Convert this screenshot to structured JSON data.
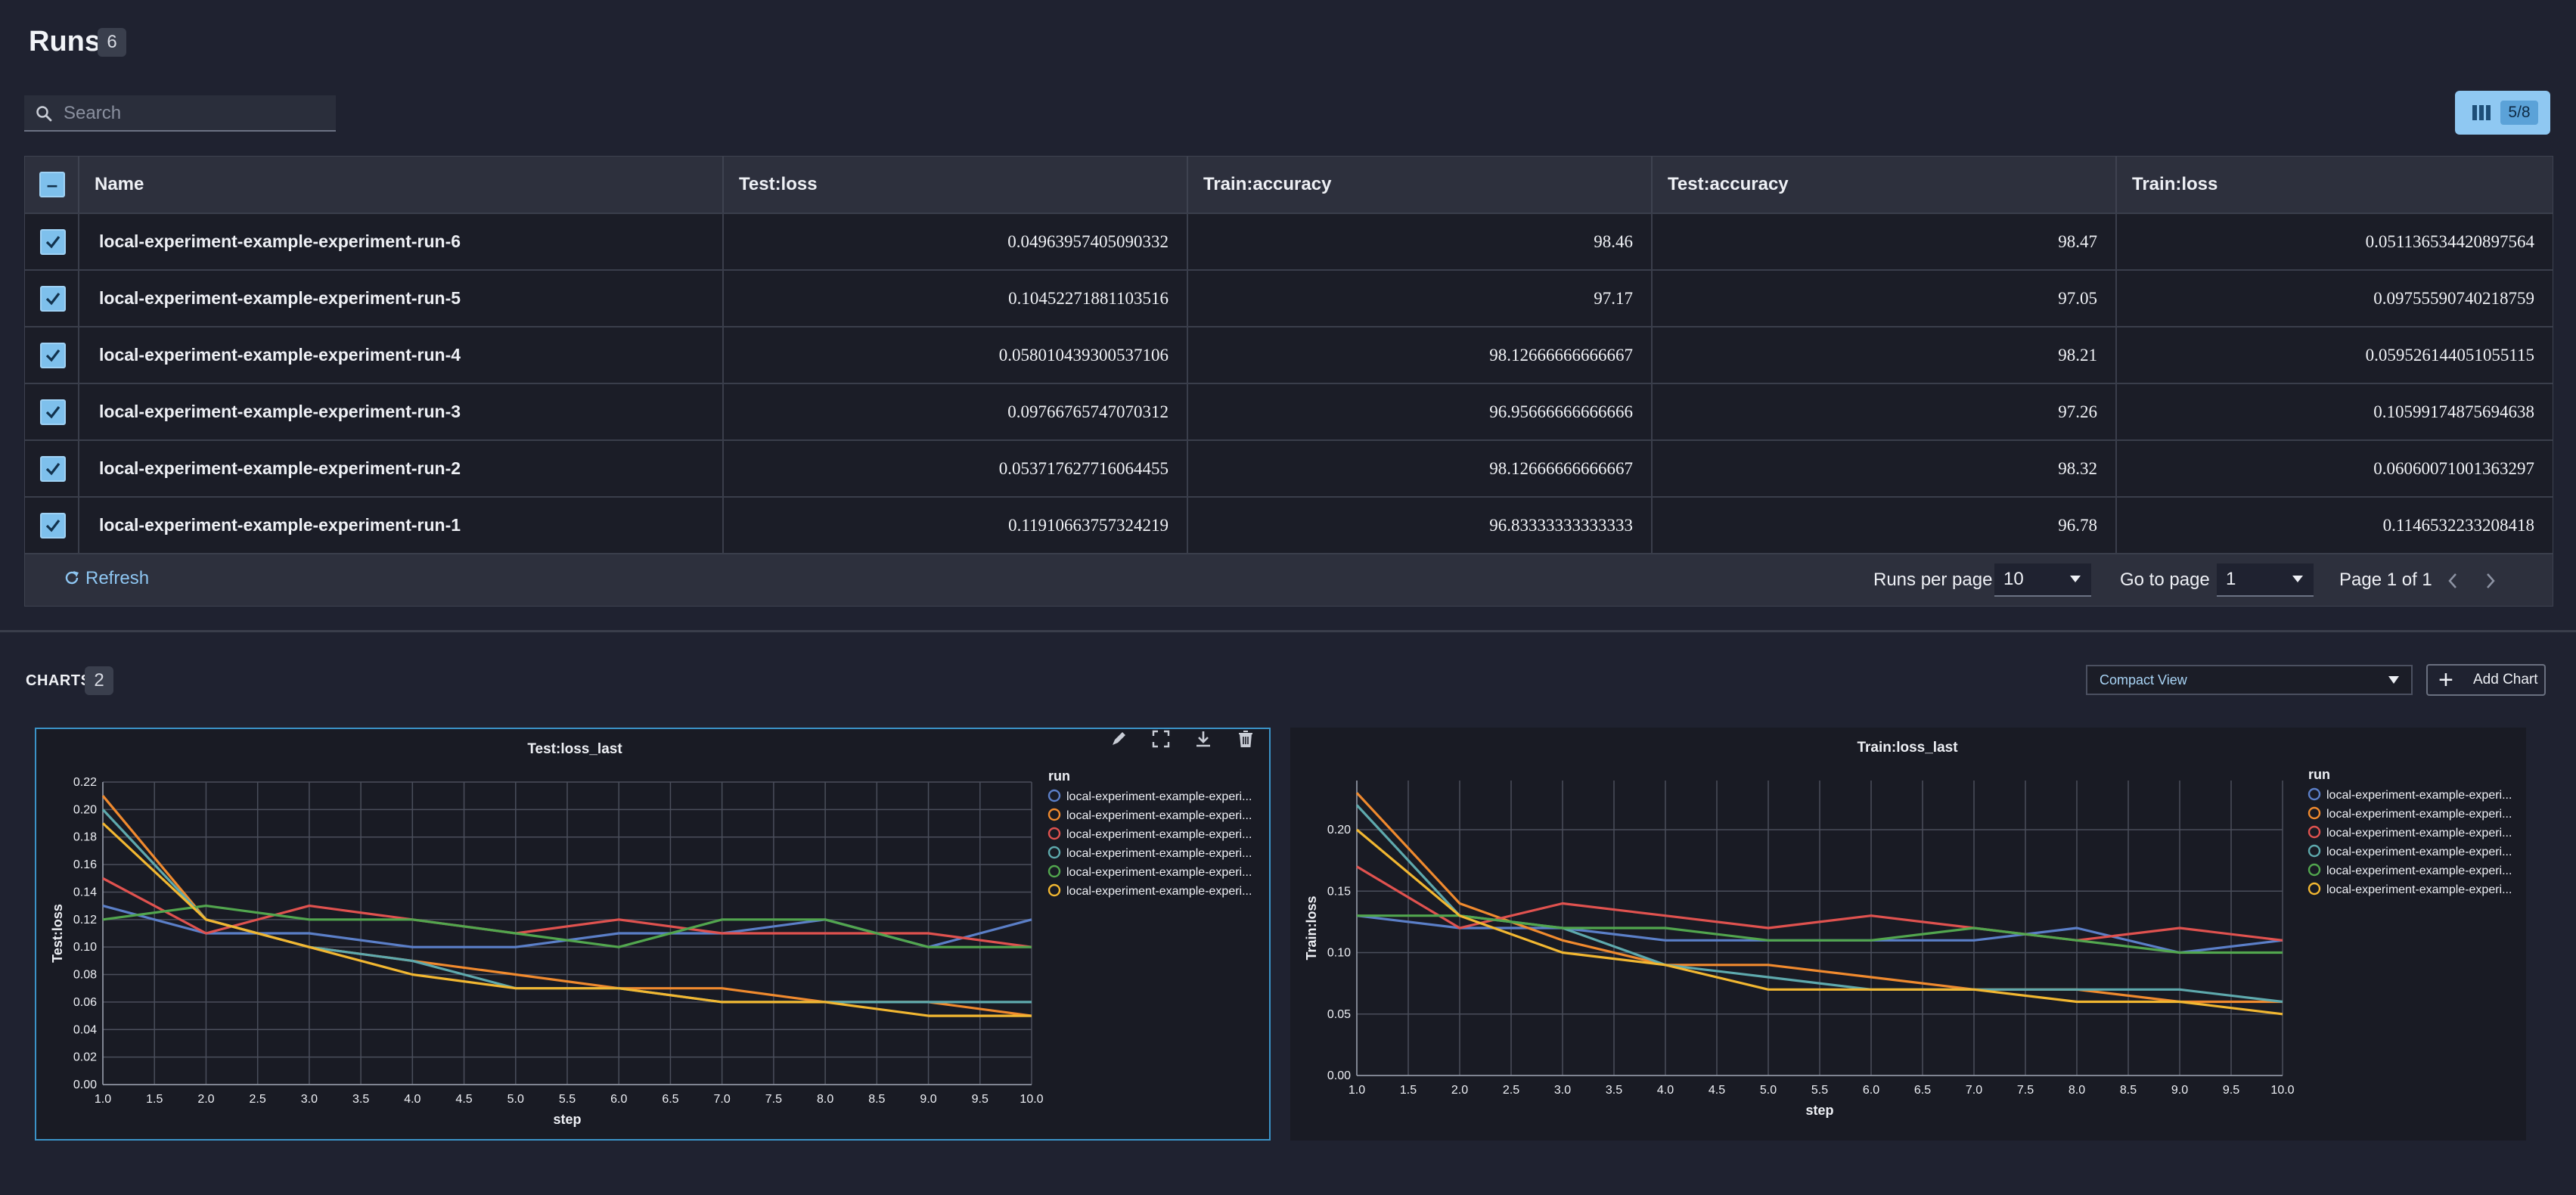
{
  "header": {
    "title": "Runs",
    "count": "6"
  },
  "search": {
    "placeholder": "Search"
  },
  "columns_button": {
    "badge": "5/8"
  },
  "table": {
    "select_all_symbol": "–",
    "columns": [
      "Name",
      "Test:loss",
      "Train:accuracy",
      "Test:accuracy",
      "Train:loss"
    ],
    "rows": [
      {
        "name": "local-experiment-example-experiment-run-6",
        "test_loss": "0.04963957405090332",
        "train_accuracy": "98.46",
        "test_accuracy": "98.47",
        "train_loss": "0.051136534420897564"
      },
      {
        "name": "local-experiment-example-experiment-run-5",
        "test_loss": "0.10452271881103516",
        "train_accuracy": "97.17",
        "test_accuracy": "97.05",
        "train_loss": "0.09755590740218759"
      },
      {
        "name": "local-experiment-example-experiment-run-4",
        "test_loss": "0.058010439300537106",
        "train_accuracy": "98.12666666666667",
        "test_accuracy": "98.21",
        "train_loss": "0.059526144051055115"
      },
      {
        "name": "local-experiment-example-experiment-run-3",
        "test_loss": "0.09766765747070312",
        "train_accuracy": "96.95666666666666",
        "test_accuracy": "97.26",
        "train_loss": "0.10599174875694638"
      },
      {
        "name": "local-experiment-example-experiment-run-2",
        "test_loss": "0.053717627716064455",
        "train_accuracy": "98.12666666666667",
        "test_accuracy": "98.32",
        "train_loss": "0.06060071001363297"
      },
      {
        "name": "local-experiment-example-experiment-run-1",
        "test_loss": "0.11910663757324219",
        "train_accuracy": "96.83333333333333",
        "test_accuracy": "96.78",
        "train_loss": "0.1146532233208418"
      }
    ]
  },
  "footer": {
    "refresh_label": "Refresh",
    "runs_per_page_label": "Runs per page",
    "runs_per_page_value": "10",
    "go_to_page_label": "Go to page",
    "go_to_page_value": "1",
    "page_status": "Page 1 of 1"
  },
  "charts_section": {
    "label": "CHARTS",
    "count": "2",
    "view_select": "Compact View",
    "add_chart_label": "Add Chart"
  },
  "colors": {
    "series": [
      "#5b7fc8",
      "#f08a2e",
      "#e0524f",
      "#5ea9ad",
      "#52a64e",
      "#f2b731"
    ],
    "accent": "#3b93c7"
  },
  "chart_data": [
    {
      "type": "line",
      "title": "Test:loss_last",
      "xlabel": "step",
      "ylabel": "Test:loss",
      "legend_title": "run",
      "legend_position": "right",
      "xlim": [
        1,
        10
      ],
      "ylim": [
        0,
        0.22
      ],
      "x_ticks": [
        "1.0",
        "1.5",
        "2.0",
        "2.5",
        "3.0",
        "3.5",
        "4.0",
        "4.5",
        "5.0",
        "5.5",
        "6.0",
        "6.5",
        "7.0",
        "7.5",
        "8.0",
        "8.5",
        "9.0",
        "9.5",
        "10.0"
      ],
      "y_ticks": [
        "0.00",
        "0.02",
        "0.04",
        "0.06",
        "0.08",
        "0.10",
        "0.12",
        "0.14",
        "0.16",
        "0.18",
        "0.20",
        "0.22"
      ],
      "grid": true,
      "x": [
        1,
        2,
        3,
        4,
        5,
        6,
        7,
        8,
        9,
        10
      ],
      "series": [
        {
          "name": "local-experiment-example-experi...",
          "values": [
            0.13,
            0.11,
            0.11,
            0.1,
            0.1,
            0.11,
            0.11,
            0.12,
            0.1,
            0.12
          ]
        },
        {
          "name": "local-experiment-example-experi...",
          "values": [
            0.21,
            0.12,
            0.1,
            0.09,
            0.08,
            0.07,
            0.07,
            0.06,
            0.06,
            0.05
          ]
        },
        {
          "name": "local-experiment-example-experi...",
          "values": [
            0.15,
            0.11,
            0.13,
            0.12,
            0.11,
            0.12,
            0.11,
            0.11,
            0.11,
            0.1
          ]
        },
        {
          "name": "local-experiment-example-experi...",
          "values": [
            0.2,
            0.12,
            0.1,
            0.09,
            0.07,
            0.07,
            0.06,
            0.06,
            0.06,
            0.06
          ]
        },
        {
          "name": "local-experiment-example-experi...",
          "values": [
            0.12,
            0.13,
            0.12,
            0.12,
            0.11,
            0.1,
            0.12,
            0.12,
            0.1,
            0.1
          ]
        },
        {
          "name": "local-experiment-example-experi...",
          "values": [
            0.19,
            0.12,
            0.1,
            0.08,
            0.07,
            0.07,
            0.06,
            0.06,
            0.05,
            0.05
          ]
        }
      ]
    },
    {
      "type": "line",
      "title": "Train:loss_last",
      "xlabel": "step",
      "ylabel": "Train:loss",
      "legend_title": "run",
      "legend_position": "right",
      "xlim": [
        1,
        10
      ],
      "ylim": [
        0,
        0.24
      ],
      "x_ticks": [
        "1.0",
        "1.5",
        "2.0",
        "2.5",
        "3.0",
        "3.5",
        "4.0",
        "4.5",
        "5.0",
        "5.5",
        "6.0",
        "6.5",
        "7.0",
        "7.5",
        "8.0",
        "8.5",
        "9.0",
        "9.5",
        "10.0"
      ],
      "y_ticks": [
        "0.00",
        "0.05",
        "0.10",
        "0.15",
        "0.20"
      ],
      "grid": true,
      "x": [
        1,
        2,
        3,
        4,
        5,
        6,
        7,
        8,
        9,
        10
      ],
      "series": [
        {
          "name": "local-experiment-example-experi...",
          "values": [
            0.13,
            0.12,
            0.12,
            0.11,
            0.11,
            0.11,
            0.11,
            0.12,
            0.1,
            0.11
          ]
        },
        {
          "name": "local-experiment-example-experi...",
          "values": [
            0.23,
            0.14,
            0.11,
            0.09,
            0.09,
            0.08,
            0.07,
            0.07,
            0.06,
            0.06
          ]
        },
        {
          "name": "local-experiment-example-experi...",
          "values": [
            0.17,
            0.12,
            0.14,
            0.13,
            0.12,
            0.13,
            0.12,
            0.11,
            0.12,
            0.11
          ]
        },
        {
          "name": "local-experiment-example-experi...",
          "values": [
            0.22,
            0.13,
            0.12,
            0.09,
            0.08,
            0.07,
            0.07,
            0.07,
            0.07,
            0.06
          ]
        },
        {
          "name": "local-experiment-example-experi...",
          "values": [
            0.13,
            0.13,
            0.12,
            0.12,
            0.11,
            0.11,
            0.12,
            0.11,
            0.1,
            0.1
          ]
        },
        {
          "name": "local-experiment-example-experi...",
          "values": [
            0.2,
            0.13,
            0.1,
            0.09,
            0.07,
            0.07,
            0.07,
            0.06,
            0.06,
            0.05
          ]
        }
      ]
    }
  ]
}
